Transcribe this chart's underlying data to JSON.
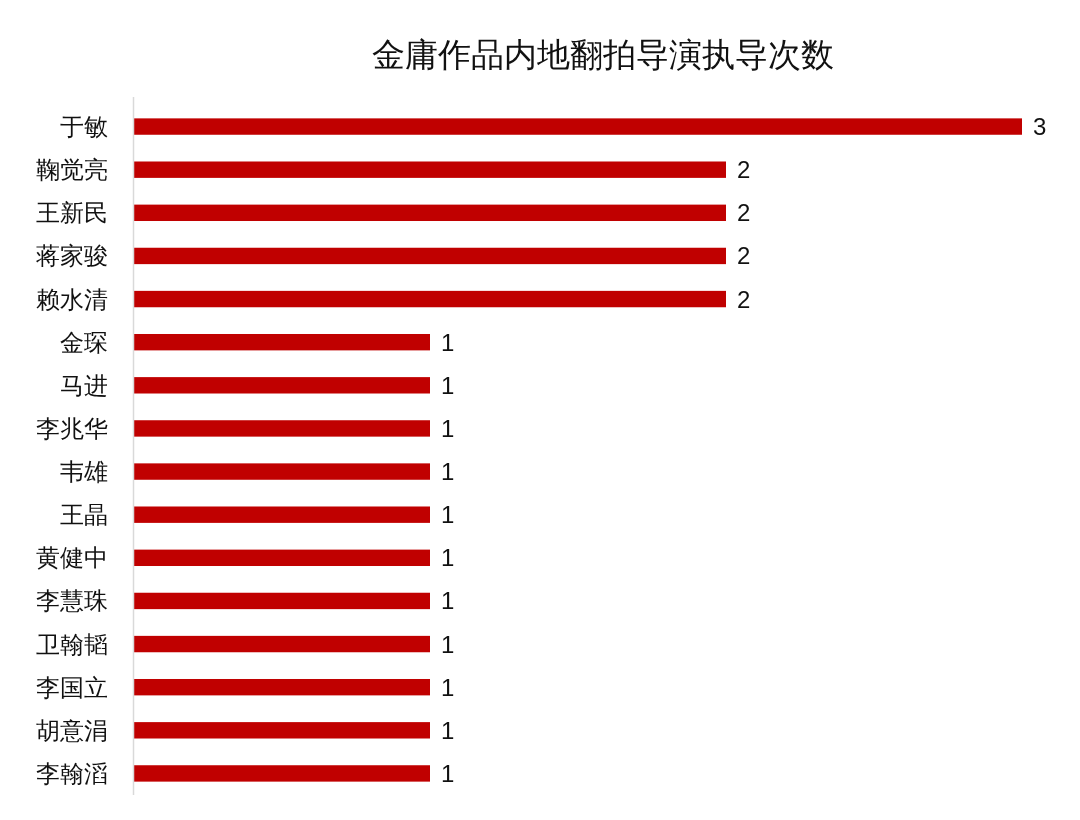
{
  "chart_data": {
    "type": "bar",
    "orientation": "horizontal",
    "title": "金庸作品内地翻拍导演执导次数",
    "categories": [
      "于敏",
      "鞠觉亮",
      "王新民",
      "蒋家骏",
      "赖水清",
      "金琛",
      "马进",
      "李兆华",
      "韦雄",
      "王晶",
      "黄健中",
      "李慧珠",
      "卫翰韬",
      "李国立",
      "胡意涓",
      "李翰滔"
    ],
    "values": [
      3,
      2,
      2,
      2,
      2,
      1,
      1,
      1,
      1,
      1,
      1,
      1,
      1,
      1,
      1,
      1
    ],
    "color": "#c00000",
    "data_labels": true
  }
}
